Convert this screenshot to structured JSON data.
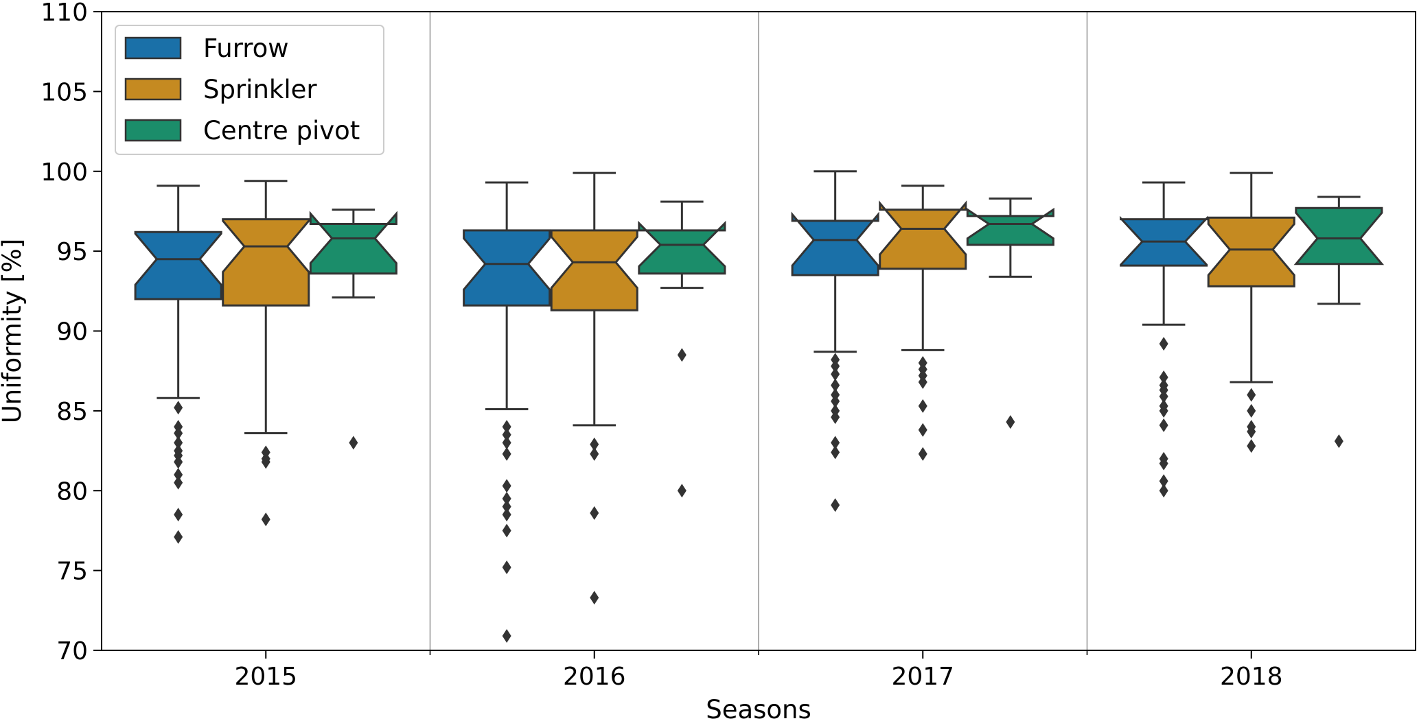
{
  "chart_data": {
    "type": "boxplot",
    "title": "",
    "xlabel": "Seasons",
    "ylabel": "Uniformity [%]",
    "ylim": [
      70,
      110
    ],
    "yticks": [
      70,
      75,
      80,
      85,
      90,
      95,
      100,
      105,
      110
    ],
    "categories": [
      "2015",
      "2016",
      "2017",
      "2018"
    ],
    "notched": true,
    "grid": "vertical separators between seasons",
    "legend": {
      "position": "top-left"
    },
    "series": [
      {
        "name": "Furrow",
        "color": "#1a70a8",
        "boxes": [
          {
            "whislo": 85.8,
            "q1": 92.0,
            "med": 94.5,
            "q3": 96.2,
            "whishi": 99.1,
            "fliers": [
              85.2,
              84.0,
              83.6,
              83.0,
              82.5,
              82.2,
              81.8,
              81.0,
              80.5,
              78.5,
              77.1
            ]
          },
          {
            "whislo": 85.1,
            "q1": 91.6,
            "med": 94.2,
            "q3": 96.3,
            "whishi": 99.3,
            "fliers": [
              84.0,
              83.5,
              83.0,
              82.3,
              80.3,
              79.5,
              79.0,
              78.5,
              77.5,
              75.2,
              70.9
            ]
          },
          {
            "whislo": 88.7,
            "q1": 93.5,
            "med": 95.7,
            "q3": 96.9,
            "whishi": 100.0,
            "fliers": [
              88.2,
              87.8,
              87.3,
              86.6,
              86.0,
              85.6,
              85.0,
              84.6,
              83.0,
              82.4,
              79.1
            ]
          },
          {
            "whislo": 90.4,
            "q1": 94.1,
            "med": 95.6,
            "q3": 97.0,
            "whishi": 99.3,
            "fliers": [
              89.2,
              87.1,
              86.6,
              86.3,
              85.9,
              85.3,
              85.0,
              84.1,
              82.0,
              81.7,
              80.6,
              80.0
            ]
          }
        ]
      },
      {
        "name": "Sprinkler",
        "color": "#c58a21",
        "boxes": [
          {
            "whislo": 83.6,
            "q1": 91.6,
            "med": 95.3,
            "q3": 97.0,
            "whishi": 99.4,
            "fliers": [
              82.4,
              82.0,
              81.8,
              78.2
            ]
          },
          {
            "whislo": 84.1,
            "q1": 91.3,
            "med": 94.3,
            "q3": 96.3,
            "whishi": 99.9,
            "fliers": [
              82.9,
              82.3,
              78.6,
              73.3
            ]
          },
          {
            "whislo": 88.8,
            "q1": 93.9,
            "med": 96.4,
            "q3": 97.6,
            "whishi": 99.1,
            "fliers": [
              88.0,
              87.6,
              87.2,
              86.8,
              85.3,
              83.8,
              82.3
            ]
          },
          {
            "whislo": 86.8,
            "q1": 92.8,
            "med": 95.1,
            "q3": 97.1,
            "whishi": 99.9,
            "fliers": [
              86.0,
              85.0,
              84.0,
              83.7,
              82.8
            ]
          }
        ]
      },
      {
        "name": "Centre pivot",
        "color": "#1b8d6a",
        "boxes": [
          {
            "whislo": 92.1,
            "q1": 93.6,
            "med": 95.8,
            "q3": 96.7,
            "whishi": 97.6,
            "fliers": [
              83.0
            ]
          },
          {
            "whislo": 92.7,
            "q1": 93.6,
            "med": 95.4,
            "q3": 96.3,
            "whishi": 98.1,
            "fliers": [
              88.5,
              80.0
            ]
          },
          {
            "whislo": 93.4,
            "q1": 95.4,
            "med": 96.7,
            "q3": 97.2,
            "whishi": 98.3,
            "fliers": [
              84.3
            ]
          },
          {
            "whislo": 91.7,
            "q1": 94.2,
            "med": 95.8,
            "q3": 97.7,
            "whishi": 98.4,
            "fliers": [
              83.1
            ]
          }
        ]
      }
    ]
  }
}
